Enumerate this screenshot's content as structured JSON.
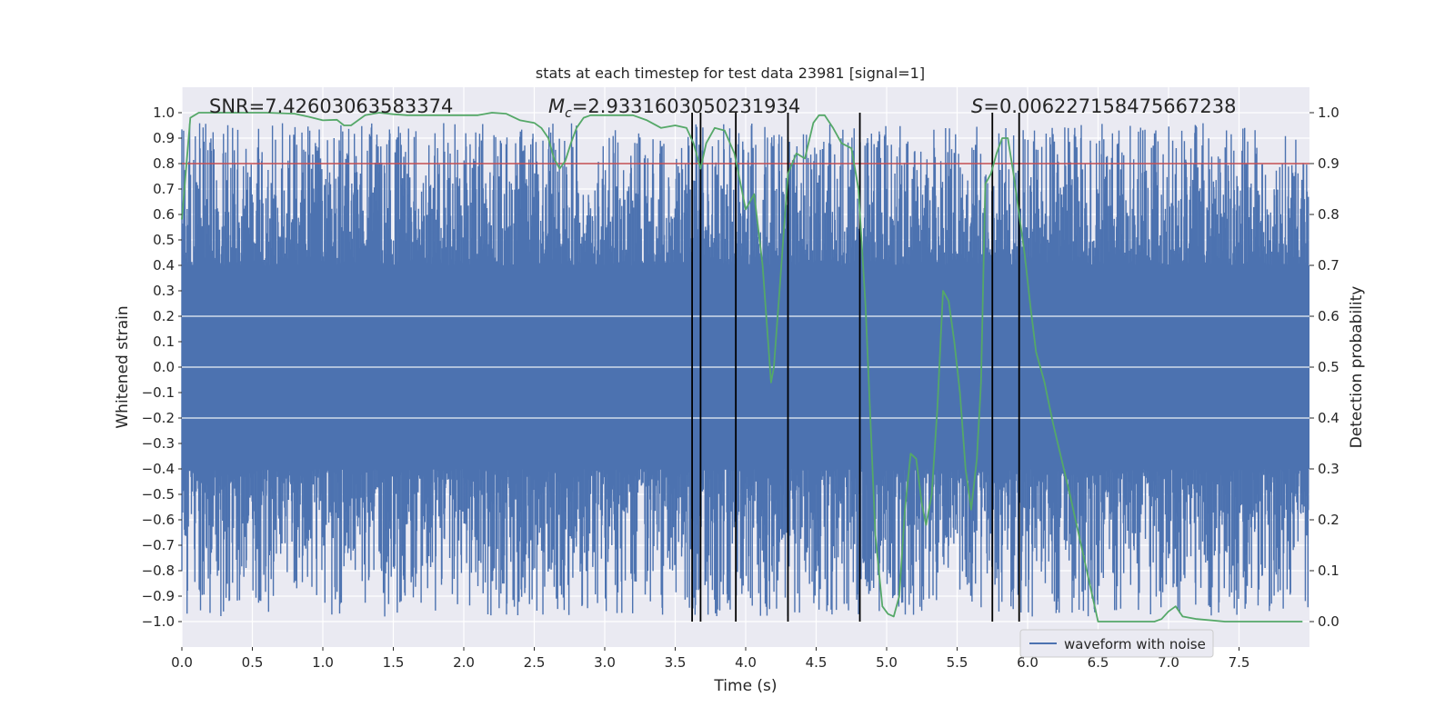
{
  "chart_data": {
    "type": "line",
    "title": "stats at each timestep for test data 23981 [signal=1]",
    "xlabel": "Time (s)",
    "ylabel": "Whitened strain",
    "y2label": "Detection probability",
    "xlim": [
      0,
      8
    ],
    "ylim": [
      -1.1,
      1.1
    ],
    "y2lim": [
      -0.05,
      1.05
    ],
    "xticks": [
      0.0,
      0.5,
      1.0,
      1.5,
      2.0,
      2.5,
      3.0,
      3.5,
      4.0,
      4.5,
      5.0,
      5.5,
      6.0,
      6.5,
      7.0,
      7.5
    ],
    "yticks": [
      -1.0,
      -0.9,
      -0.8,
      -0.7,
      -0.6,
      -0.5,
      -0.4,
      -0.3,
      -0.2,
      -0.1,
      0.0,
      0.1,
      0.2,
      0.3,
      0.4,
      0.5,
      0.6,
      0.7,
      0.8,
      0.9,
      1.0
    ],
    "y2ticks": [
      0.0,
      0.1,
      0.2,
      0.3,
      0.4,
      0.5,
      0.6,
      0.7,
      0.8,
      0.9,
      1.0
    ],
    "grid": true,
    "legend": {
      "position": "bottom-right",
      "entries": [
        "waveform with noise"
      ]
    },
    "annotations": {
      "snr": "SNR=7.42603063583374",
      "mc_symbol": "M",
      "mc_sub": "c",
      "mc_value": "=2.9331603050231934",
      "s_symbol": "S",
      "s_value": "=0.006227158475667238"
    },
    "threshold": {
      "axis": "y2",
      "value": 0.9,
      "color": "#c44e52"
    },
    "vlines": [
      3.62,
      3.68,
      3.93,
      4.3,
      4.81,
      5.75,
      5.94
    ],
    "series": [
      {
        "name": "waveform with noise",
        "axis": "y",
        "color": "#4c72b0",
        "kind": "noise",
        "core_amplitude": 0.4,
        "spike_max": 0.96,
        "spike_min": -0.98
      },
      {
        "name": "detection probability",
        "axis": "y2",
        "color": "#55a868",
        "x": [
          0.0,
          0.06,
          0.12,
          0.2,
          0.4,
          0.6,
          0.8,
          0.9,
          1.0,
          1.1,
          1.15,
          1.2,
          1.3,
          1.4,
          1.5,
          1.6,
          1.7,
          1.8,
          1.9,
          2.0,
          2.1,
          2.2,
          2.3,
          2.4,
          2.5,
          2.55,
          2.6,
          2.64,
          2.68,
          2.72,
          2.76,
          2.8,
          2.85,
          2.9,
          3.0,
          3.1,
          3.2,
          3.3,
          3.4,
          3.5,
          3.58,
          3.63,
          3.68,
          3.72,
          3.78,
          3.85,
          3.92,
          4.0,
          4.06,
          4.12,
          4.18,
          4.2,
          4.24,
          4.3,
          4.36,
          4.42,
          4.48,
          4.52,
          4.56,
          4.62,
          4.68,
          4.75,
          4.8,
          4.85,
          4.92,
          4.97,
          5.01,
          5.05,
          5.09,
          5.13,
          5.17,
          5.21,
          5.25,
          5.28,
          5.32,
          5.36,
          5.4,
          5.44,
          5.48,
          5.52,
          5.56,
          5.6,
          5.64,
          5.67,
          5.7,
          5.74,
          5.78,
          5.82,
          5.86,
          5.9,
          5.94,
          5.98,
          6.02,
          6.06,
          6.12,
          6.18,
          6.24,
          6.3,
          6.5,
          6.7,
          6.8,
          6.9,
          6.95,
          7.0,
          7.05,
          7.1,
          7.2,
          7.4,
          7.6,
          7.8,
          7.95
        ],
        "y": [
          0.79,
          0.99,
          1.0,
          1.0,
          1.0,
          1.0,
          0.998,
          0.992,
          0.985,
          0.986,
          0.975,
          0.975,
          0.995,
          1.0,
          0.997,
          0.995,
          0.995,
          0.995,
          0.995,
          0.995,
          0.995,
          1.0,
          0.998,
          0.985,
          0.98,
          0.97,
          0.95,
          0.91,
          0.89,
          0.905,
          0.94,
          0.97,
          0.99,
          0.995,
          0.995,
          0.995,
          0.995,
          0.985,
          0.97,
          0.975,
          0.97,
          0.94,
          0.89,
          0.94,
          0.97,
          0.965,
          0.92,
          0.81,
          0.84,
          0.7,
          0.47,
          0.5,
          0.65,
          0.88,
          0.92,
          0.91,
          0.98,
          0.995,
          0.995,
          0.97,
          0.94,
          0.93,
          0.85,
          0.62,
          0.17,
          0.03,
          0.015,
          0.01,
          0.05,
          0.22,
          0.33,
          0.32,
          0.23,
          0.19,
          0.25,
          0.42,
          0.65,
          0.63,
          0.55,
          0.45,
          0.3,
          0.22,
          0.32,
          0.47,
          0.86,
          0.88,
          0.92,
          0.95,
          0.95,
          0.88,
          0.8,
          0.72,
          0.62,
          0.53,
          0.47,
          0.39,
          0.32,
          0.25,
          0.0,
          0.0,
          0.0,
          0.0,
          0.005,
          0.02,
          0.03,
          0.01,
          0.005,
          0.0,
          0.0,
          0.0,
          0.0
        ]
      }
    ]
  }
}
